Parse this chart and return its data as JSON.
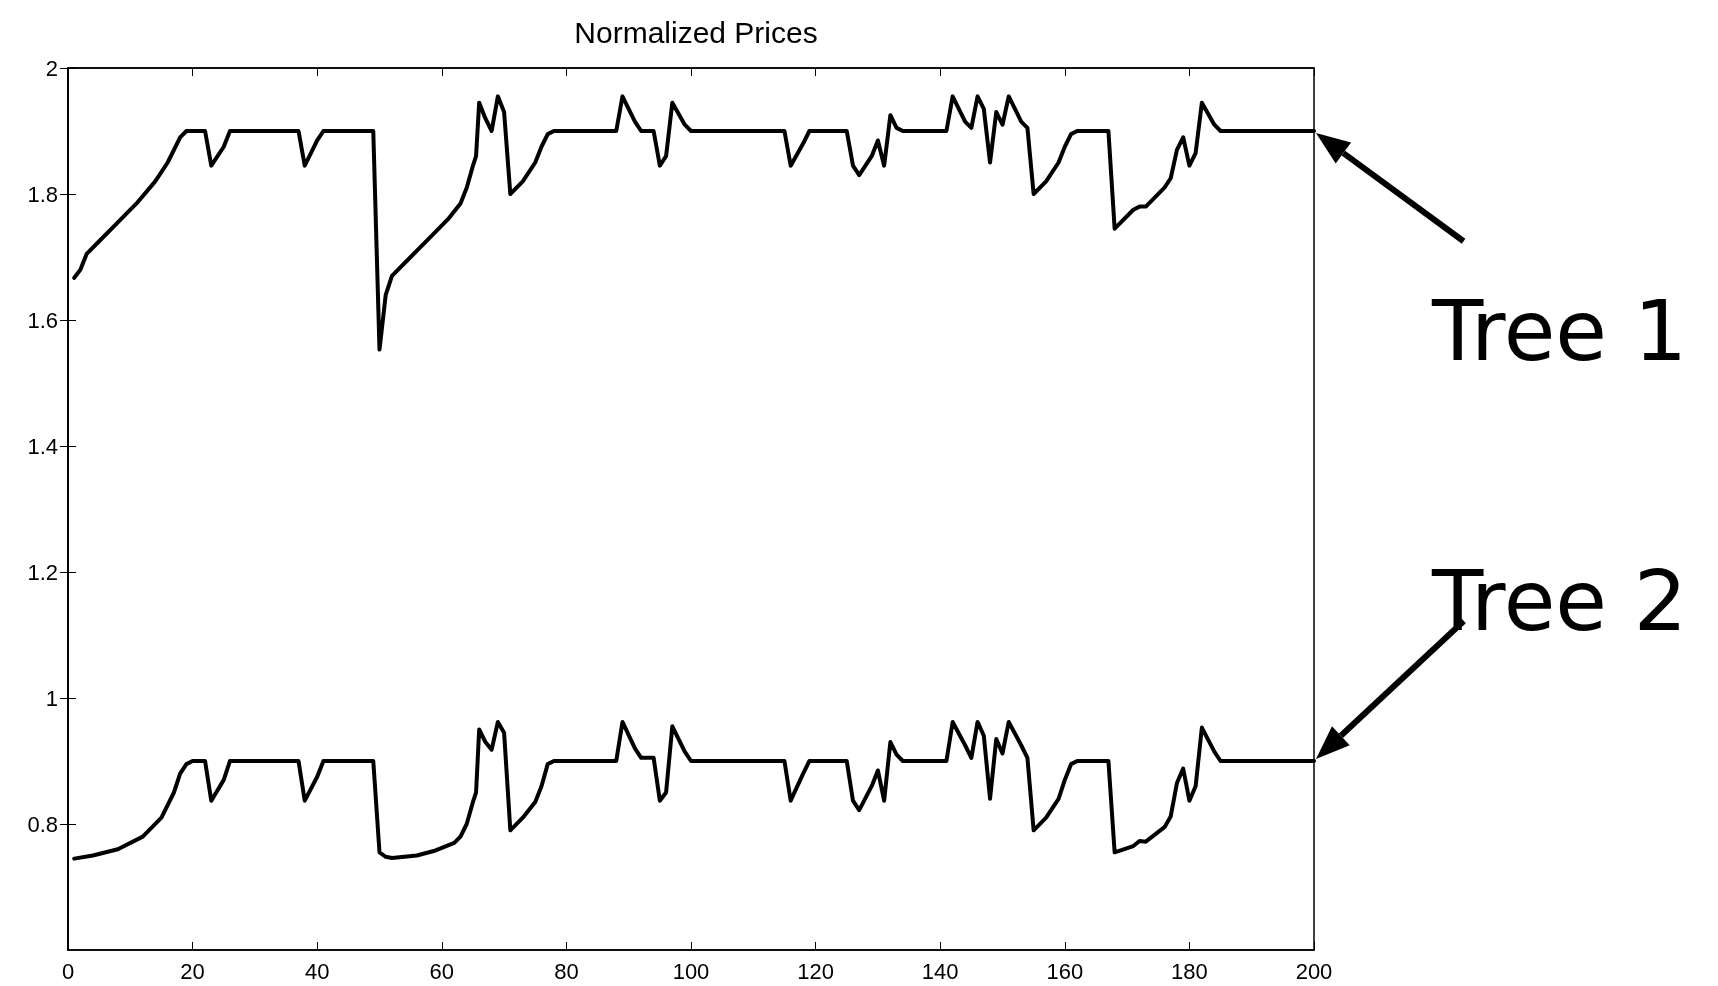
{
  "chart_data": {
    "type": "line",
    "title": "Normalized Prices",
    "xlim": [
      0,
      200
    ],
    "xticks": [
      0,
      20,
      40,
      60,
      80,
      100,
      120,
      140,
      160,
      180,
      200
    ],
    "ylim": [
      0.6,
      2
    ],
    "yticks": [
      0.8,
      1,
      1.2,
      1.4,
      1.6,
      1.8,
      2
    ],
    "grid": false,
    "legend": "right",
    "line_style": "solid",
    "marker": "none",
    "series": [
      {
        "name": "Tree 1",
        "color": "#000000",
        "x": [
          1,
          2,
          3,
          5,
          8,
          11,
          14,
          16,
          18,
          19,
          22,
          23,
          25,
          26,
          37,
          38,
          40,
          41,
          49,
          50,
          51,
          52,
          55,
          58,
          61,
          63,
          64,
          65,
          65.5,
          66,
          67,
          68,
          69,
          70,
          71,
          73,
          75,
          76,
          77,
          78,
          88,
          89,
          91,
          92,
          94,
          95,
          96,
          97,
          99,
          100,
          115,
          116,
          118,
          119,
          125,
          126,
          127,
          129,
          130,
          131,
          132,
          133,
          134,
          141,
          142,
          144,
          145,
          146,
          147,
          148,
          149,
          150,
          151,
          153,
          154,
          155,
          157,
          159,
          160,
          161,
          162,
          167,
          168,
          171,
          172,
          173,
          176,
          177,
          178,
          179,
          180,
          181,
          182,
          184,
          185,
          200
        ],
        "values": [
          1.667,
          1.68,
          1.705,
          1.725,
          1.755,
          1.785,
          1.82,
          1.85,
          1.89,
          1.9,
          1.9,
          1.845,
          1.875,
          1.9,
          1.9,
          1.845,
          1.885,
          1.9,
          1.9,
          1.553,
          1.64,
          1.67,
          1.7,
          1.73,
          1.76,
          1.785,
          1.81,
          1.845,
          1.86,
          1.945,
          1.92,
          1.9,
          1.955,
          1.93,
          1.8,
          1.82,
          1.85,
          1.875,
          1.895,
          1.9,
          1.9,
          1.955,
          1.915,
          1.9,
          1.9,
          1.845,
          1.86,
          1.945,
          1.91,
          1.9,
          1.9,
          1.845,
          1.88,
          1.9,
          1.9,
          1.845,
          1.83,
          1.86,
          1.885,
          1.845,
          1.925,
          1.905,
          1.9,
          1.9,
          1.955,
          1.915,
          1.905,
          1.955,
          1.935,
          1.85,
          1.93,
          1.91,
          1.955,
          1.915,
          1.905,
          1.8,
          1.82,
          1.85,
          1.875,
          1.895,
          1.9,
          1.9,
          1.745,
          1.775,
          1.78,
          1.78,
          1.81,
          1.825,
          1.87,
          1.89,
          1.845,
          1.865,
          1.945,
          1.91,
          1.9,
          1.9
        ]
      },
      {
        "name": "Tree 2",
        "color": "#000000",
        "x": [
          1,
          4,
          8,
          12,
          15,
          17,
          18,
          19,
          20,
          22,
          23,
          25,
          26,
          37,
          38,
          40,
          41,
          49,
          50,
          51,
          52,
          56,
          59,
          62,
          63,
          64,
          65,
          65.5,
          66,
          67,
          68,
          69,
          70,
          71,
          73,
          75,
          76,
          77,
          78,
          88,
          89,
          91,
          92,
          94,
          95,
          96,
          97,
          99,
          100,
          115,
          116,
          118,
          119,
          125,
          126,
          127,
          129,
          130,
          131,
          132,
          133,
          134,
          141,
          142,
          144,
          145,
          146,
          147,
          148,
          149,
          150,
          151,
          153,
          154,
          155,
          157,
          159,
          160,
          161,
          162,
          167,
          168,
          171,
          172,
          173,
          176,
          177,
          178,
          179,
          180,
          181,
          182,
          184,
          185,
          200
        ],
        "values": [
          0.745,
          0.75,
          0.76,
          0.78,
          0.81,
          0.85,
          0.88,
          0.895,
          0.9,
          0.9,
          0.837,
          0.87,
          0.9,
          0.9,
          0.837,
          0.875,
          0.9,
          0.9,
          0.755,
          0.748,
          0.746,
          0.75,
          0.758,
          0.77,
          0.78,
          0.8,
          0.835,
          0.85,
          0.95,
          0.93,
          0.918,
          0.962,
          0.945,
          0.79,
          0.81,
          0.835,
          0.86,
          0.895,
          0.9,
          0.9,
          0.962,
          0.92,
          0.905,
          0.905,
          0.837,
          0.85,
          0.955,
          0.915,
          0.9,
          0.9,
          0.837,
          0.88,
          0.9,
          0.9,
          0.837,
          0.822,
          0.86,
          0.885,
          0.837,
          0.93,
          0.91,
          0.9,
          0.9,
          0.962,
          0.925,
          0.905,
          0.962,
          0.94,
          0.84,
          0.935,
          0.912,
          0.962,
          0.925,
          0.905,
          0.79,
          0.81,
          0.84,
          0.87,
          0.895,
          0.9,
          0.9,
          0.755,
          0.765,
          0.773,
          0.772,
          0.795,
          0.812,
          0.865,
          0.888,
          0.837,
          0.86,
          0.953,
          0.915,
          0.9,
          0.9
        ]
      }
    ]
  }
}
